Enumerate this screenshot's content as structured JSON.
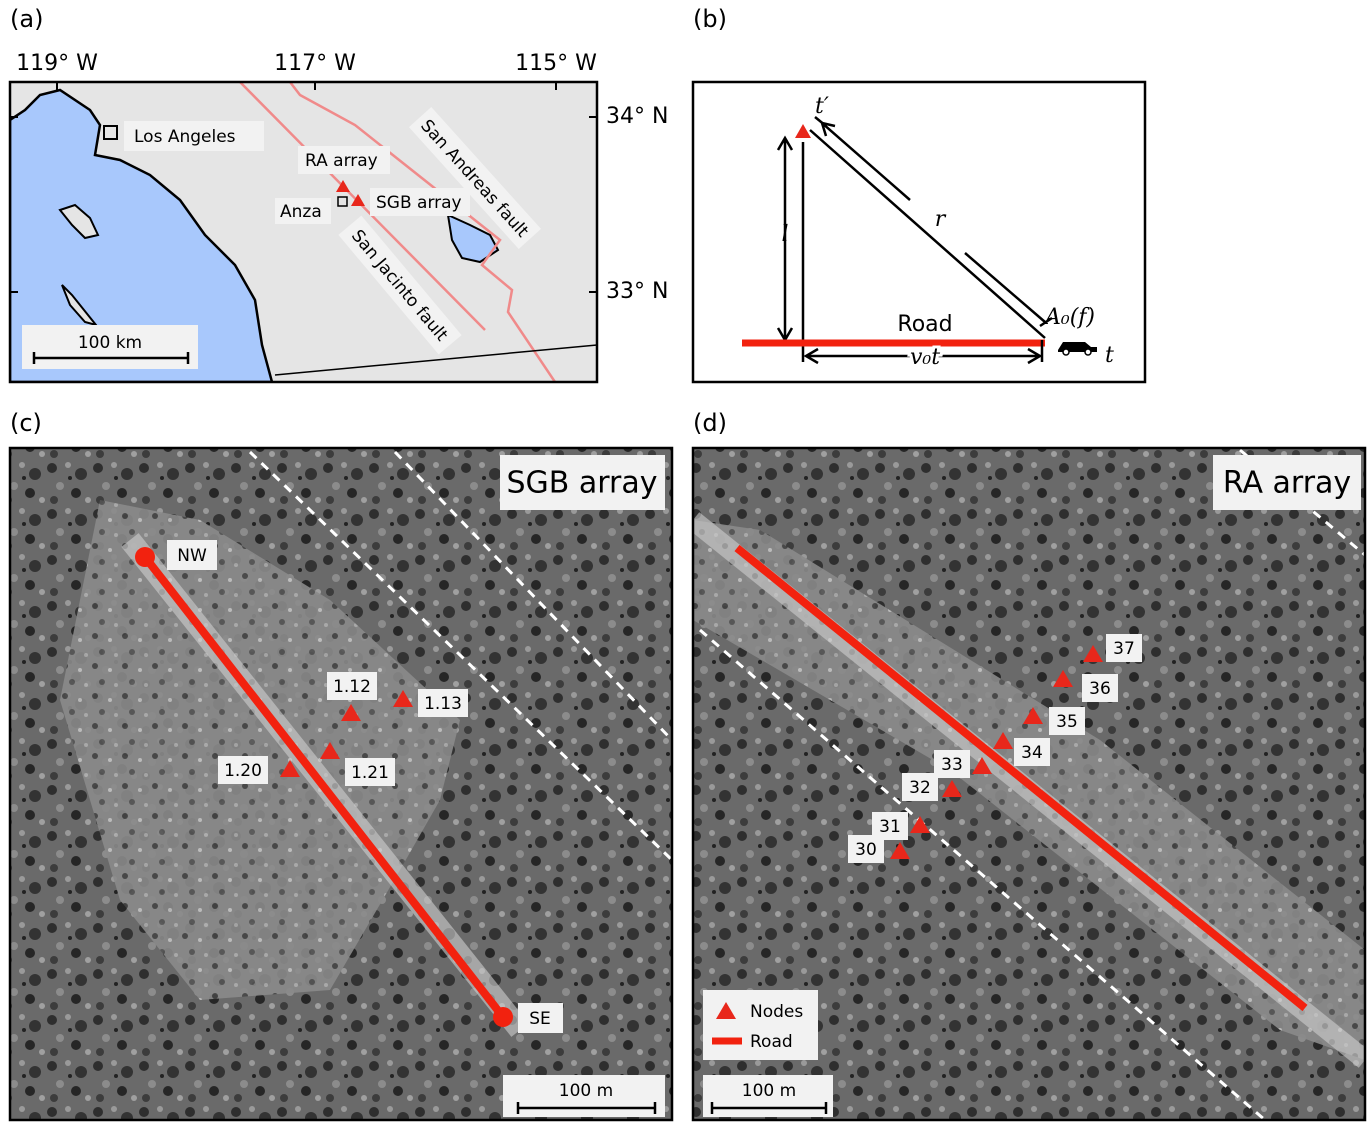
{
  "panel_a": {
    "label": "(a)",
    "longitudes": [
      "119° W",
      "117° W",
      "115° W"
    ],
    "latitudes": [
      "34° N",
      "33° N"
    ],
    "places": [
      "Los Angeles",
      "RA array",
      "Anza",
      "SGB array"
    ],
    "faults": [
      "San Andreas fault",
      "San Jacinto fault"
    ],
    "scale_bar": "100 km"
  },
  "panel_b": {
    "label": "(b)",
    "station_time": "t′",
    "offset": "l",
    "distance": "r",
    "road": "Road",
    "amplitude": "A₀(f)",
    "time": "t",
    "travel": "v₀t"
  },
  "panel_c": {
    "label": "(c)",
    "title": "SGB array",
    "ends": [
      "NW",
      "SE"
    ],
    "nodes": [
      "1.12",
      "1.13",
      "1.20",
      "1.21"
    ],
    "scale_bar": "100 m"
  },
  "panel_d": {
    "label": "(d)",
    "title": "RA array",
    "nodes": [
      "37",
      "36",
      "35",
      "34",
      "33",
      "32",
      "31",
      "30"
    ],
    "legend": [
      "Nodes",
      "Road"
    ],
    "scale_bar": "100 m"
  }
}
